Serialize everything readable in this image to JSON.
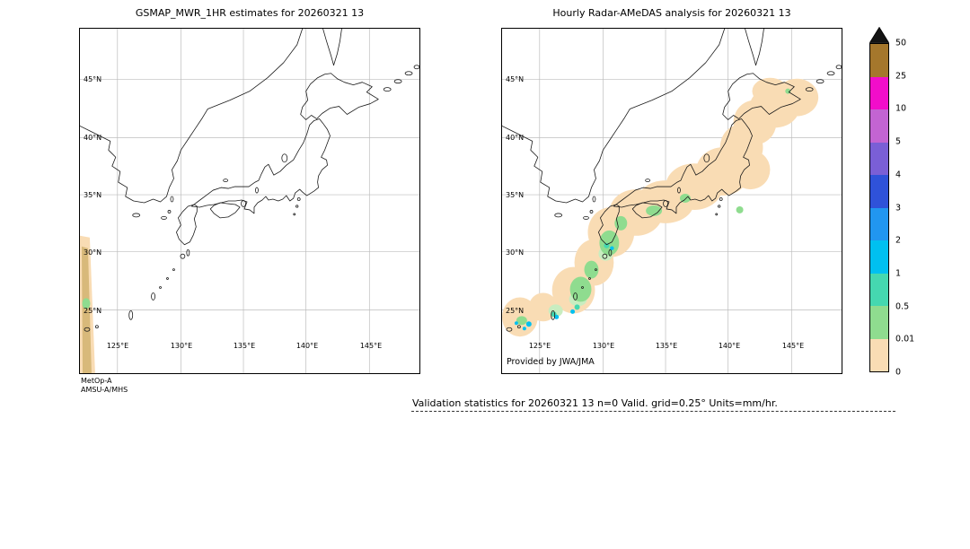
{
  "figure": {
    "background": "#ffffff",
    "caption": {
      "text": "Validation statistics for 20260321 13  n=0 Valid. grid=0.25° Units=mm/hr."
    }
  },
  "panels": {
    "left": {
      "title": "GSMAP_MWR_1HR estimates for 20260321 13",
      "sensor_line1": "MetOp-A",
      "sensor_line2": "AMSU-A/MHS"
    },
    "right": {
      "title": "Hourly Radar-AMeDAS analysis for 20260321 13",
      "credit": "Provided by JWA/JMA"
    }
  },
  "axes": {
    "lat_ticks": [
      "45°N",
      "40°N",
      "35°N",
      "30°N",
      "25°N"
    ],
    "lon_ticks": [
      "125°E",
      "130°E",
      "135°E",
      "140°E",
      "145°E"
    ]
  },
  "colorbar": {
    "labels": [
      "50",
      "25",
      "10",
      "5",
      "4",
      "3",
      "2",
      "1",
      "0.5",
      "0.01",
      "0"
    ],
    "cell_colors": [
      "#a5772c",
      "#f20dca",
      "#c364d2",
      "#7a5fd6",
      "#2f52d9",
      "#2196f0",
      "#00c0f0",
      "#45d8b0",
      "#8fdc8f",
      "#f9dcb4"
    ],
    "overflow_color": "#141414",
    "units": "mm/hr"
  },
  "palette": {
    "swath_tan": "#d8b97a",
    "pale_green": "#c8edc0",
    "grid": "#bdbdbd",
    "coast": "#1a1a1a"
  },
  "chart_data": [
    {
      "type": "heatmap",
      "title": "GSMAP_MWR_1HR estimates for 20260321 13",
      "projection": "lat-lon map of Japan",
      "lon_range": [
        122,
        149
      ],
      "lat_range": [
        19.5,
        49.5
      ],
      "lon_gridlines": [
        125,
        130,
        135,
        140,
        145
      ],
      "lat_gridlines": [
        25,
        30,
        35,
        40,
        45
      ],
      "units": "mm/hr",
      "levels": [
        0,
        0.01,
        0.5,
        1,
        2,
        3,
        4,
        5,
        10,
        25,
        50
      ],
      "grid": true,
      "legend_position": "right shared colorbar",
      "coverage": "Only a narrow satellite swath edge along the far western map boundary (~122-123.3°E, 22-31°N) contains estimates, mostly 0-0.5 mm/hr (peach/tan) with one ~0.01-0.5 mm/hr green cell near 122.5°E, 25.5°N; the rest of the domain is white (no data).",
      "sensor": "MetOp-A AMSU-A/MHS"
    },
    {
      "type": "heatmap",
      "title": "Hourly Radar-AMeDAS analysis for 20260321 13",
      "projection": "lat-lon map of Japan",
      "lon_range": [
        122,
        149
      ],
      "lat_range": [
        19.5,
        49.5
      ],
      "lon_gridlines": [
        125,
        130,
        135,
        140,
        145
      ],
      "lat_gridlines": [
        25,
        30,
        35,
        40,
        45
      ],
      "units": "mm/hr",
      "levels": [
        0,
        0.01,
        0.5,
        1,
        2,
        3,
        4,
        5,
        10,
        25,
        50
      ],
      "grid": true,
      "legend_position": "right shared colorbar",
      "coverage": "Contiguous very-light-precipitation band (0-0.01 mm/hr, peach) following the Japanese archipelago from the Yaeyama/Okinawa islands (~123°E, 24°N) through Kyushu, Shikoku and Honshu up to Hokkaido (~146°E, 46°N); embedded 0.01-0.5 mm/hr (green) cells near Amami-Okinawa, south of Kyushu, Shikoku and offshore Kanto; a few 0.5-2 mm/hr (teal/cyan) specks near Okinawa, the Yaeyama Islands and south of Kyushu.",
      "credit": "Provided by JWA/JMA"
    }
  ]
}
